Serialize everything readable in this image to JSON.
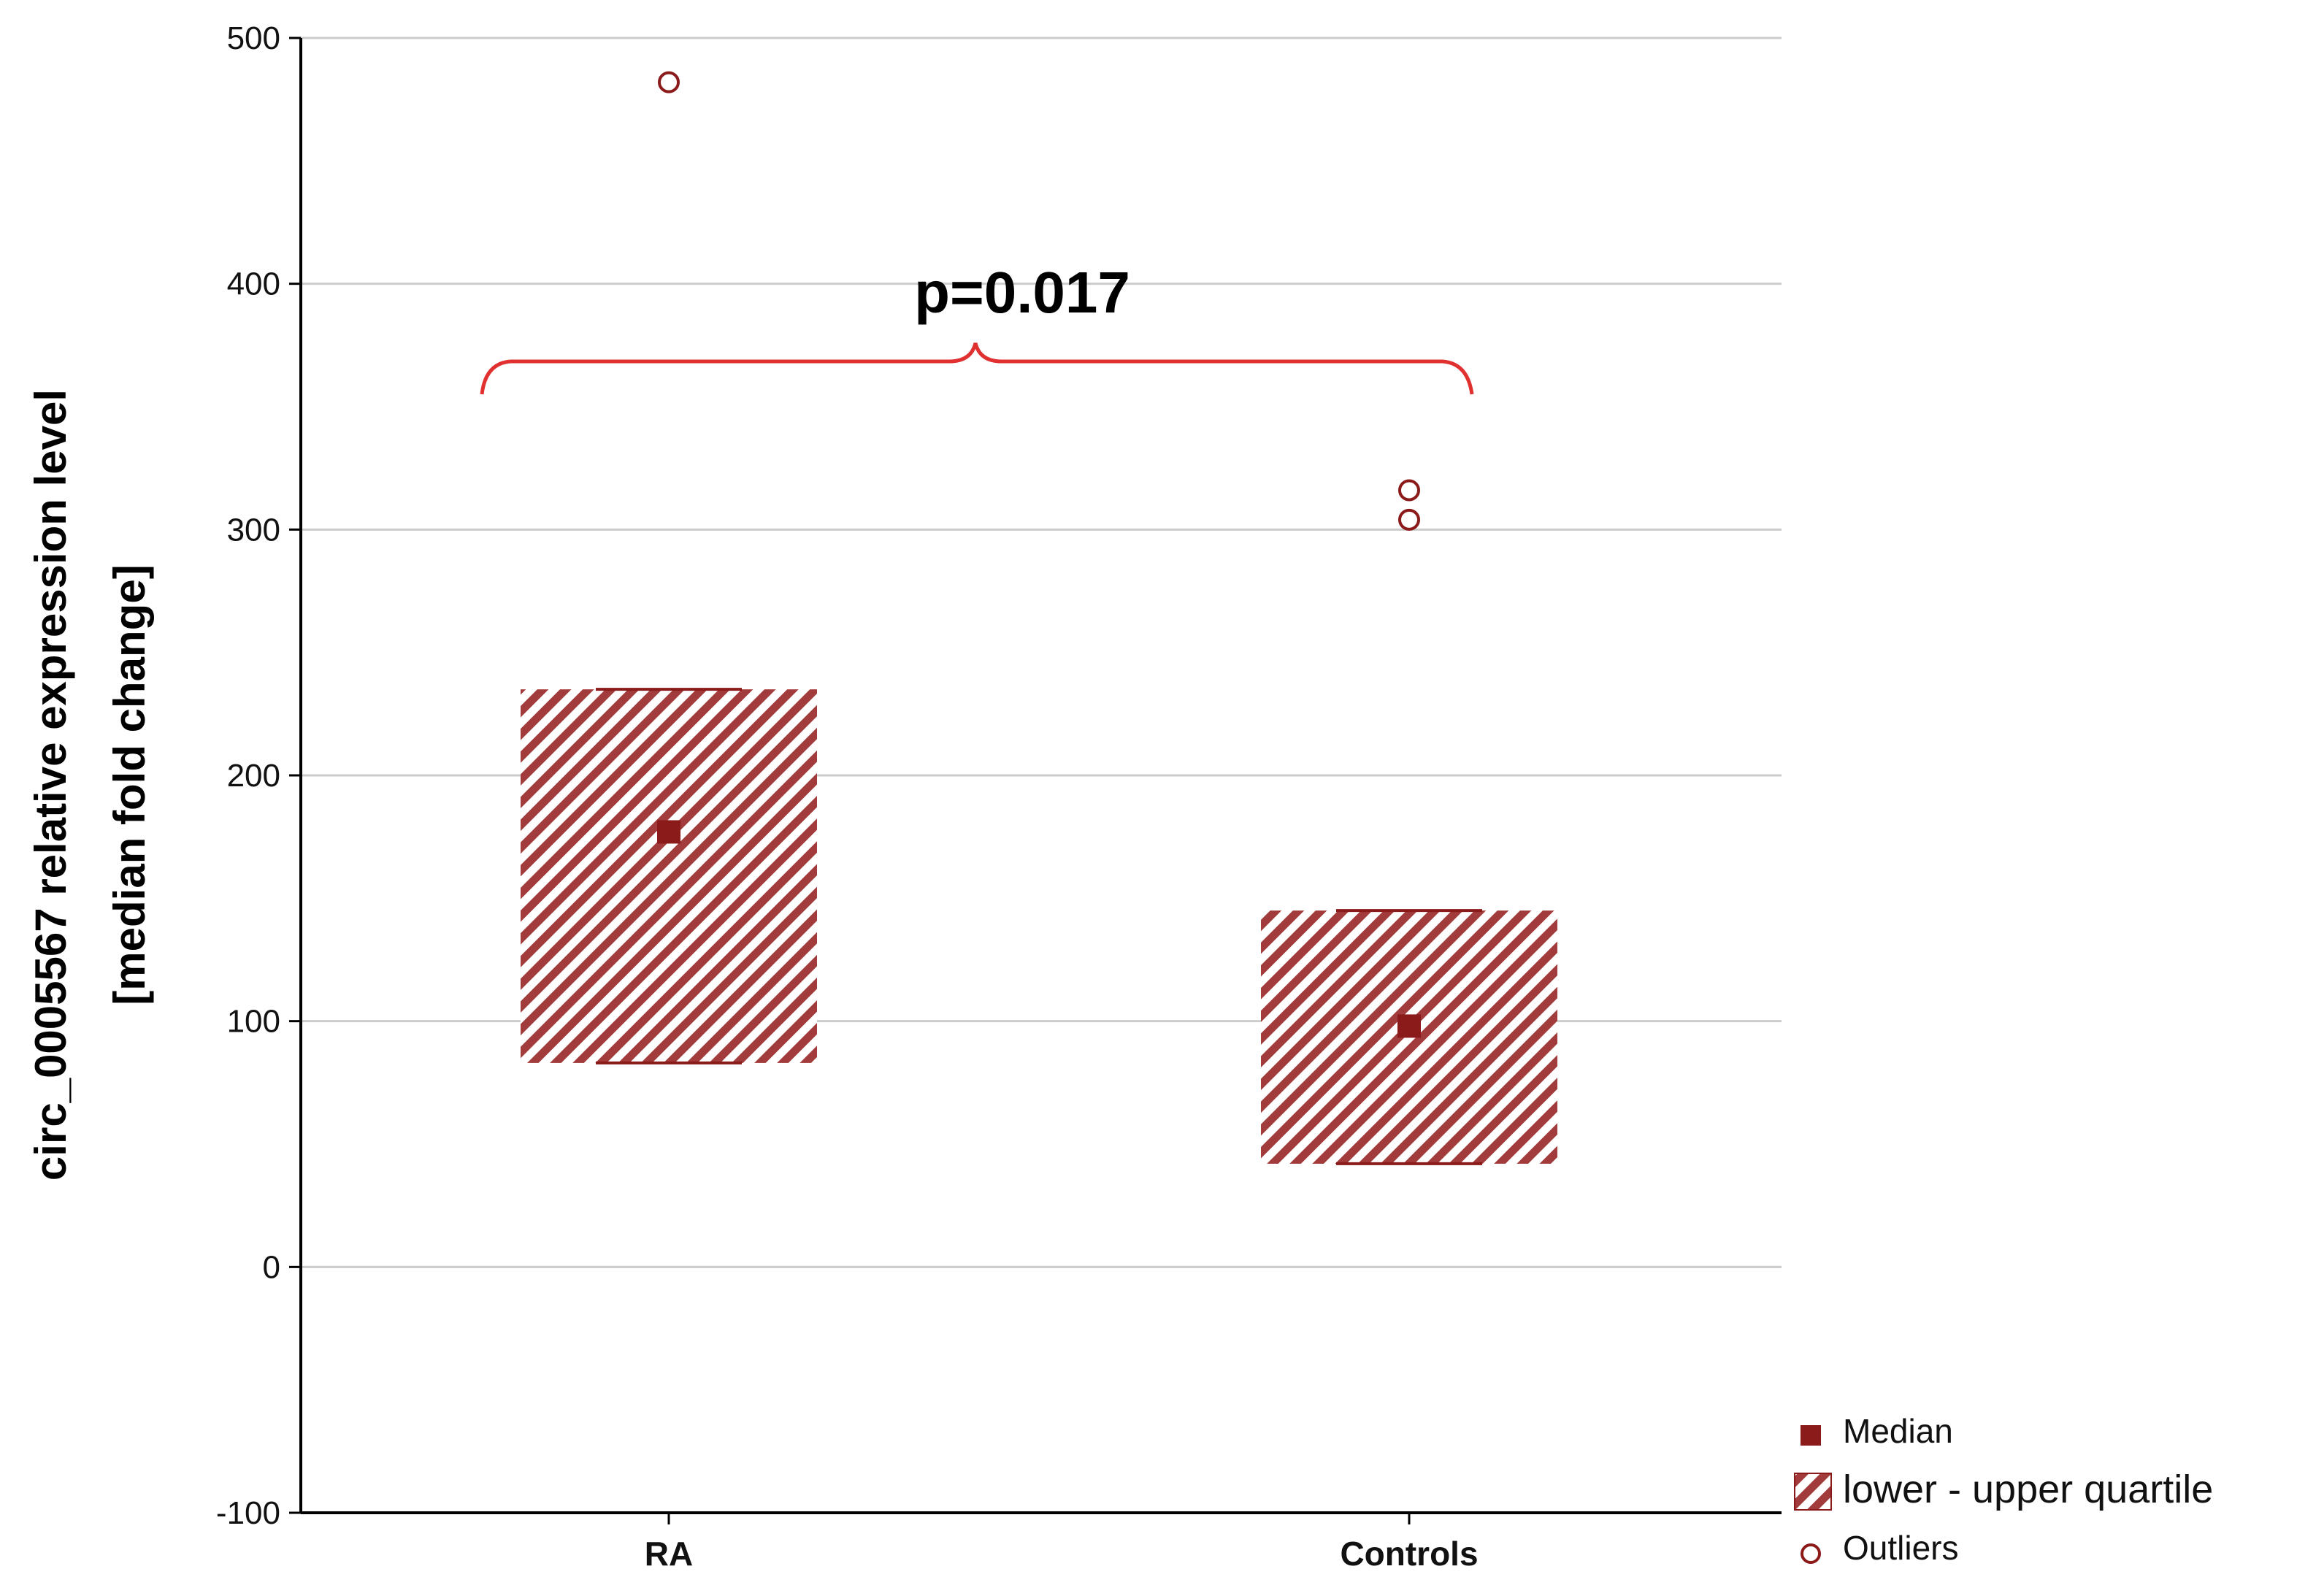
{
  "chart_data": {
    "type": "box",
    "ylabel_line1": "circ_0005567 relative expression level",
    "ylabel_line2": "[median fold change]",
    "ylim": [
      -100,
      500
    ],
    "yticks": [
      -100,
      0,
      100,
      200,
      300,
      400,
      500
    ],
    "grid": true,
    "categories": [
      "RA",
      "Controls"
    ],
    "groups": [
      {
        "name": "RA",
        "median": 177,
        "q1": 83,
        "q3": 235,
        "outliers": [
          482
        ]
      },
      {
        "name": "Controls",
        "median": 98,
        "q1": 42,
        "q3": 145,
        "outliers": [
          316,
          304
        ]
      }
    ],
    "annotation": {
      "text": "p=0.017",
      "bracket_y": 370
    },
    "legend": {
      "placement": "bottom-right",
      "items": [
        {
          "name": "Median",
          "marker": "filled-square"
        },
        {
          "name": "lower - upper quartile",
          "marker": "hatched-box"
        },
        {
          "name": "Outliers",
          "marker": "open-circle"
        }
      ]
    },
    "colors": {
      "primary": "#8b1a1a",
      "bracket": "#e03030",
      "grid": "#cccccc"
    }
  }
}
